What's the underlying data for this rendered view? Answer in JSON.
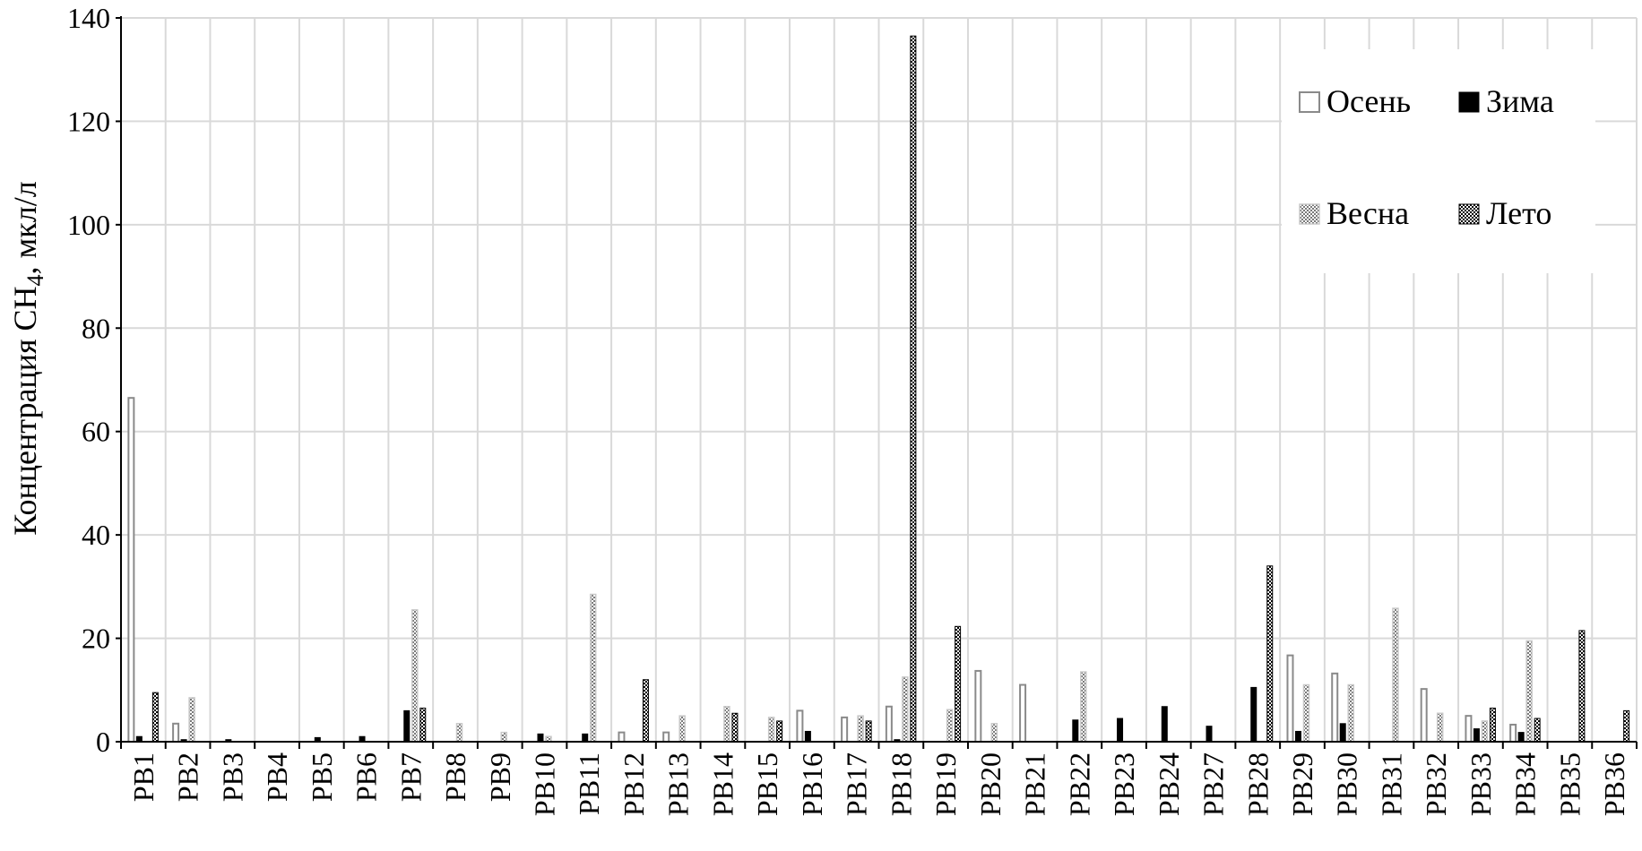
{
  "chart_data": {
    "type": "bar",
    "ylabel": "Концентрация CH4, мкл/л",
    "ylabel_main": "Концентрация CH",
    "ylabel_sub": "4",
    "ylabel_tail": ", мкл/л",
    "ylim": [
      0,
      140
    ],
    "yticks": [
      0,
      20,
      40,
      60,
      80,
      100,
      120,
      140
    ],
    "grid": true,
    "legend_position": "top-right",
    "categories": [
      "PB1",
      "PB2",
      "PB3",
      "PB4",
      "PB5",
      "PB6",
      "PB7",
      "PB8",
      "PB9",
      "PB10",
      "PB11",
      "PB12",
      "PB13",
      "PB14",
      "PB15",
      "PB16",
      "PB17",
      "PB18",
      "PB19",
      "PB20",
      "PB21",
      "PB22",
      "PB23",
      "PB24",
      "PB27",
      "PB28",
      "PB29",
      "PB30",
      "PB31",
      "PB32",
      "PB33",
      "PB34",
      "PB35",
      "PB36"
    ],
    "series": [
      {
        "name": "Осень",
        "values": [
          66.5,
          3.5,
          0,
          0,
          0,
          0,
          0,
          0,
          0,
          0,
          0,
          1.8,
          1.8,
          0,
          0,
          6,
          4.7,
          6.8,
          0,
          13.7,
          11,
          0,
          0,
          0,
          0,
          0,
          16.7,
          13.2,
          0,
          10.2,
          5,
          3.3,
          0,
          0
        ]
      },
      {
        "name": "Зима",
        "values": [
          1,
          0.4,
          0.4,
          0,
          0.8,
          1,
          6,
          0,
          0,
          1.5,
          1.5,
          0,
          0,
          0,
          0,
          2,
          0,
          0.4,
          0,
          0,
          0,
          4.2,
          4.5,
          6.8,
          3,
          10.5,
          2,
          3.5,
          0,
          0,
          2.5,
          1.8,
          0,
          0
        ]
      },
      {
        "name": "Весна",
        "values": [
          0,
          8.5,
          0,
          0,
          0,
          0,
          25.5,
          3.5,
          1.8,
          1,
          28.5,
          0,
          5,
          6.8,
          4.7,
          0,
          5,
          12.5,
          6.2,
          3.5,
          0,
          13.5,
          0,
          0,
          0,
          0,
          11,
          11,
          25.8,
          5.5,
          4,
          19.5,
          0,
          0
        ]
      },
      {
        "name": "Лето",
        "values": [
          9.5,
          0,
          0,
          0,
          0,
          0,
          6.5,
          0,
          0,
          0,
          0,
          12,
          0,
          5.5,
          4,
          0,
          4,
          136.5,
          22.3,
          0,
          0,
          0,
          0,
          0,
          0,
          34,
          0,
          0,
          0,
          0,
          6.5,
          4.5,
          21.5,
          6
        ]
      }
    ],
    "colors": {
      "Осень": "#8a8a8a",
      "Зима": "#000000",
      "Весна": "#cfcfcf",
      "Лето": "#000000"
    }
  }
}
